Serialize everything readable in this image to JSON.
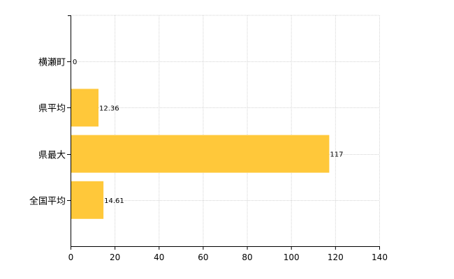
{
  "chart_data": {
    "type": "bar",
    "orientation": "horizontal",
    "categories": [
      "横瀬町",
      "県平均",
      "県最大",
      "全国平均"
    ],
    "values": [
      0,
      12.36,
      117,
      14.61
    ],
    "data_labels": [
      "0",
      "12.36",
      "117",
      "14.61"
    ],
    "title": "",
    "xlabel": "",
    "ylabel": "",
    "xlim": [
      0,
      140
    ],
    "xticks": [
      0,
      20,
      40,
      60,
      80,
      100,
      120,
      140
    ],
    "grid": true,
    "legend": "none",
    "bar_color": "#FFC83A"
  }
}
